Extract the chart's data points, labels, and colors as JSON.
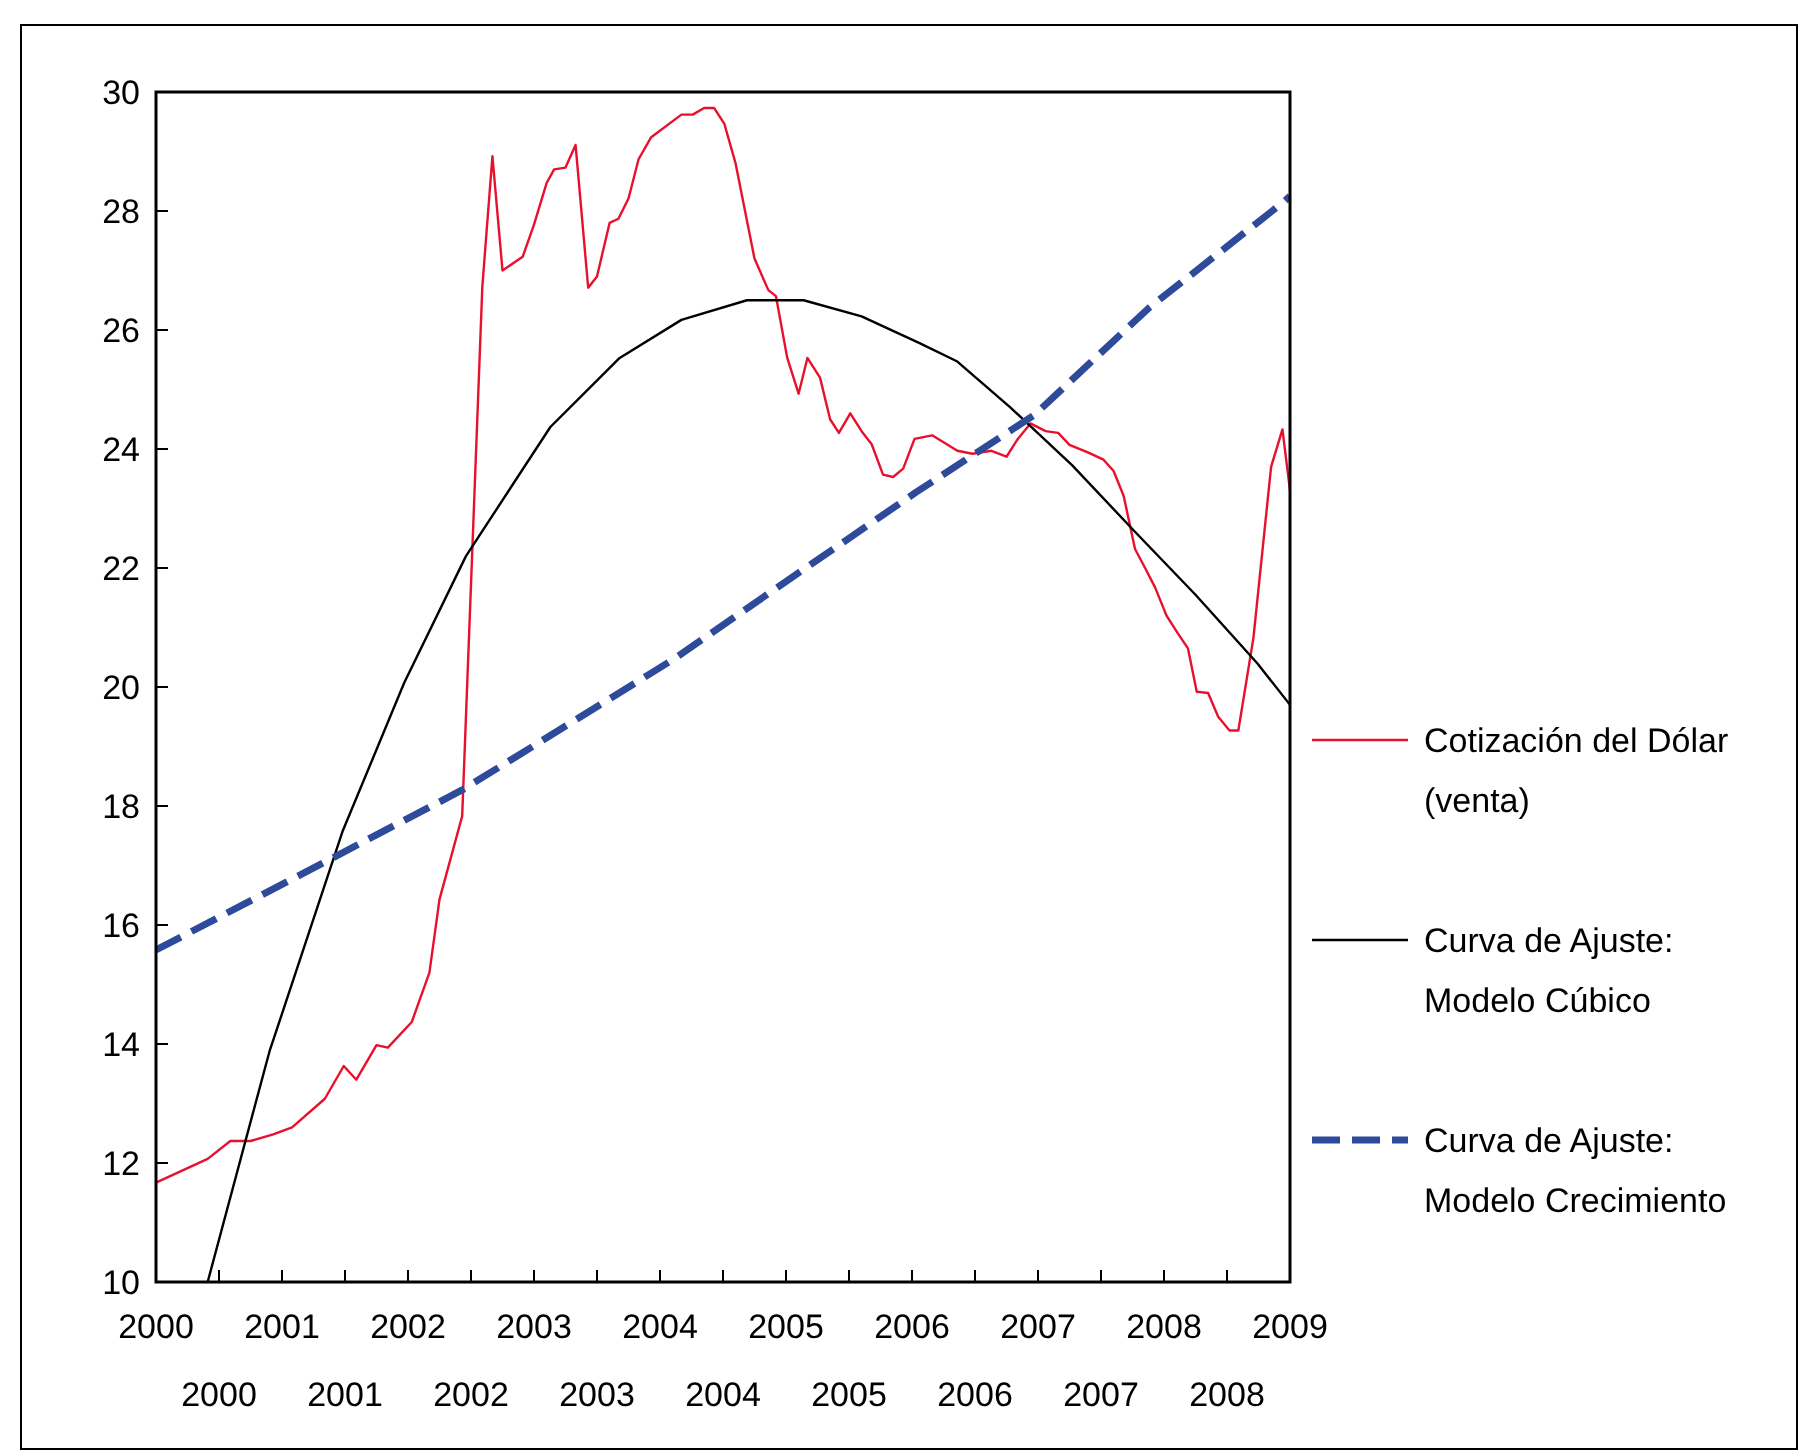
{
  "chart_data": {
    "type": "line",
    "xlim": [
      2000,
      2009
    ],
    "ylim": [
      10,
      30
    ],
    "yticks": [
      10,
      12,
      14,
      16,
      18,
      20,
      22,
      24,
      26,
      28,
      30
    ],
    "xticks": [
      2000,
      2001,
      2002,
      2003,
      2004,
      2005,
      2006,
      2007,
      2008,
      2009,
      {
        "value": 2000.5,
        "label": null
      },
      {
        "value": 2001.5,
        "label": null
      },
      {
        "value": 2002.5,
        "label": null
      },
      {
        "value": 2003.5,
        "label": null
      },
      {
        "value": 2004.5,
        "label": null
      },
      {
        "value": 2005.5,
        "label": null
      },
      {
        "value": 2006.5,
        "label": null
      },
      {
        "value": 2007.5,
        "label": null
      },
      {
        "value": 2008.5,
        "label": null
      }
    ],
    "annotations": [
      "2000",
      "2001",
      "2002",
      "2003",
      "2004",
      "2005",
      "2006",
      "2007",
      "2008"
    ],
    "grid": false,
    "legend": "right",
    "series": [
      {
        "name": "Cotización del Dólar (venta)",
        "color": "#e8112d",
        "line_style": "solid",
        "x": [
          2000.0,
          2000.41,
          2000.59,
          2000.75,
          2000.93,
          2001.08,
          2001.34,
          2001.49,
          2001.59,
          2001.75,
          2001.84,
          2002.03,
          2002.17,
          2002.25,
          2002.43,
          2002.59,
          2002.67,
          2002.75,
          2002.91,
          2003.0,
          2003.1,
          2003.16,
          2003.25,
          2003.33,
          2003.43,
          2003.5,
          2003.6,
          2003.67,
          2003.75,
          2003.83,
          2003.93,
          2004.17,
          2004.26,
          2004.35,
          2004.43,
          2004.51,
          2004.6,
          2004.75,
          2004.86,
          2004.92,
          2005.01,
          2005.1,
          2005.17,
          2005.27,
          2005.35,
          2005.42,
          2005.51,
          2005.6,
          2005.68,
          2005.77,
          2005.85,
          2005.93,
          2006.02,
          2006.16,
          2006.36,
          2006.48,
          2006.63,
          2006.75,
          2006.84,
          2006.94,
          2007.06,
          2007.16,
          2007.25,
          2007.4,
          2007.52,
          2007.6,
          2007.68,
          2007.77,
          2007.85,
          2007.93,
          2008.02,
          2008.11,
          2008.19,
          2008.26,
          2008.35,
          2008.43,
          2008.52,
          2008.59,
          2008.71,
          2008.85,
          2008.94,
          2009.0
        ],
        "values": [
          11.67,
          12.07,
          12.37,
          12.37,
          12.48,
          12.6,
          13.08,
          13.63,
          13.4,
          13.98,
          13.94,
          14.37,
          15.2,
          16.43,
          17.83,
          26.73,
          28.92,
          27.0,
          27.23,
          27.77,
          28.47,
          28.7,
          28.73,
          29.11,
          26.71,
          26.9,
          27.8,
          27.87,
          28.21,
          28.87,
          29.24,
          29.62,
          29.62,
          29.73,
          29.73,
          29.47,
          28.8,
          27.2,
          26.67,
          26.57,
          25.53,
          24.93,
          25.53,
          25.2,
          24.5,
          24.27,
          24.6,
          24.3,
          24.08,
          23.57,
          23.53,
          23.67,
          24.17,
          24.23,
          23.97,
          23.92,
          23.97,
          23.87,
          24.17,
          24.43,
          24.3,
          24.27,
          24.07,
          23.94,
          23.82,
          23.63,
          23.21,
          22.32,
          22.0,
          21.67,
          21.2,
          20.9,
          20.65,
          19.92,
          19.9,
          19.5,
          19.27,
          19.27,
          20.83,
          23.7,
          24.33,
          23.3
        ]
      },
      {
        "name": "Curva de Ajuste: Modelo Cúbico",
        "color": "#000000",
        "line_style": "solid",
        "x": [
          2000.41,
          2000.9,
          2001.48,
          2001.97,
          2002.46,
          2003.13,
          2003.68,
          2004.17,
          2004.69,
          2005.14,
          2005.6,
          2006.06,
          2006.36,
          2006.78,
          2007.27,
          2007.76,
          2008.25,
          2008.74,
          2009.0
        ],
        "values": [
          10.0,
          13.87,
          17.57,
          20.07,
          22.2,
          24.37,
          25.53,
          26.17,
          26.5,
          26.5,
          26.23,
          25.78,
          25.47,
          24.7,
          23.73,
          22.63,
          21.55,
          20.4,
          19.7
        ]
      },
      {
        "name": "Curva de Ajuste: Modelo Crecimiento",
        "color": "#2e4a9a",
        "line_style": "dashed",
        "x": [
          2000.0,
          2001.35,
          2002.43,
          2002.89,
          2004.11,
          2004.97,
          2006.03,
          2006.97,
          2007.88,
          2008.96,
          2009.0
        ],
        "values": [
          15.58,
          17.07,
          18.27,
          18.87,
          20.47,
          21.73,
          23.27,
          24.57,
          26.37,
          28.17,
          28.25
        ]
      }
    ]
  }
}
